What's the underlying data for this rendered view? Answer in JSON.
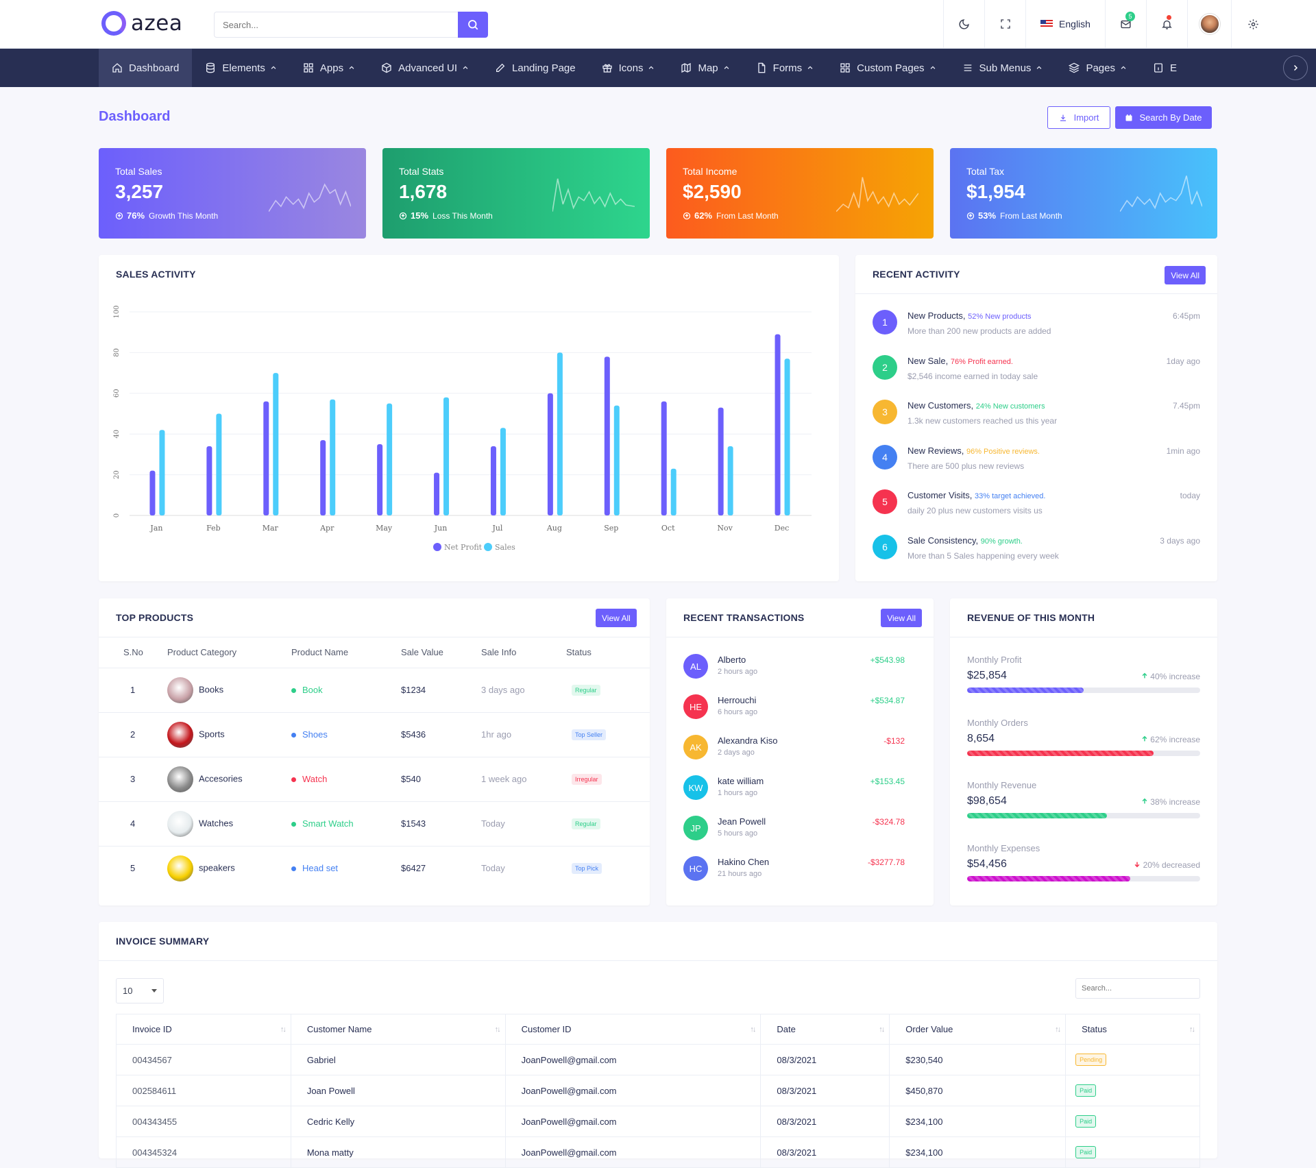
{
  "brand": {
    "name": "azea"
  },
  "search": {
    "placeholder": "Search..."
  },
  "topbar": {
    "language": "English",
    "mail_count": "5"
  },
  "nav": [
    {
      "label": "Dashboard",
      "icon": "home-icon",
      "chevron": false
    },
    {
      "label": "Elements",
      "icon": "database-icon",
      "chevron": true
    },
    {
      "label": "Apps",
      "icon": "grid-icon",
      "chevron": true
    },
    {
      "label": "Advanced UI",
      "icon": "package-icon",
      "chevron": true
    },
    {
      "label": "Landing Page",
      "icon": "edit-icon",
      "chevron": false
    },
    {
      "label": "Icons",
      "icon": "gift-icon",
      "chevron": true
    },
    {
      "label": "Map",
      "icon": "map-icon",
      "chevron": true
    },
    {
      "label": "Forms",
      "icon": "file-icon",
      "chevron": true
    },
    {
      "label": "Custom Pages",
      "icon": "grid-icon",
      "chevron": true
    },
    {
      "label": "Sub Menus",
      "icon": "menu-icon",
      "chevron": true
    },
    {
      "label": "Pages",
      "icon": "layers-icon",
      "chevron": true
    },
    {
      "label": "E",
      "icon": "info-icon",
      "chevron": false
    }
  ],
  "header": {
    "title": "Dashboard",
    "import_label": "Import",
    "search_by_date_label": "Search By Date"
  },
  "stats": [
    {
      "title": "Total Sales",
      "value": "3,257",
      "percent": "76%",
      "note": "Growth This Month",
      "gradient": [
        "#6c5ffc",
        "#9a87e0"
      ]
    },
    {
      "title": "Total Stats",
      "value": "1,678",
      "percent": "15%",
      "note": "Loss This Month",
      "gradient": [
        "#1e9e6e",
        "#2ed58d"
      ]
    },
    {
      "title": "Total Income",
      "value": "$2,590",
      "percent": "62%",
      "note": "From Last Month",
      "gradient": [
        "#fc5b1e",
        "#f6a404"
      ]
    },
    {
      "title": "Total Tax",
      "value": "$1,954",
      "percent": "53%",
      "note": "From Last Month",
      "gradient": [
        "#5b73f1",
        "#48c2fb"
      ]
    }
  ],
  "sales_activity": {
    "title": "SALES ACTIVITY",
    "chart_data": {
      "type": "bar",
      "categories": [
        "Jan",
        "Feb",
        "Mar",
        "Apr",
        "May",
        "Jun",
        "Jul",
        "Aug",
        "Sep",
        "Oct",
        "Nov",
        "Dec"
      ],
      "series": [
        {
          "name": "Net Profit",
          "color": "#6c5ffc",
          "values": [
            22,
            34,
            56,
            37,
            35,
            21,
            34,
            60,
            78,
            56,
            53,
            89
          ]
        },
        {
          "name": "Sales",
          "color": "#4ccdfb",
          "values": [
            42,
            50,
            70,
            57,
            55,
            58,
            43,
            80,
            54,
            23,
            34,
            77
          ]
        }
      ],
      "ylim": [
        0,
        100
      ],
      "yticks": [
        "0",
        "20",
        "40",
        "60",
        "80",
        "100"
      ],
      "grid": true,
      "legend": "bottom"
    }
  },
  "recent_activity": {
    "title": "RECENT ACTIVITY",
    "view_all": "View All",
    "items": [
      {
        "num": "1",
        "title": "New Products,",
        "highlight": "52% New products",
        "hl_color": "#6c5ffc",
        "desc": "More than 200 new products are added",
        "time": "6:45pm",
        "color": "#6c5ffc"
      },
      {
        "num": "2",
        "title": "New Sale,",
        "highlight": "76% Profit earned.",
        "hl_color": "#f5334f",
        "desc": "$2,546 income earned in today sale",
        "time": "1day ago",
        "color": "#2dce89"
      },
      {
        "num": "3",
        "title": "New Customers,",
        "highlight": "24% New customers",
        "hl_color": "#2dce89",
        "desc": "1.3k new customers reached us this year",
        "time": "7.45pm",
        "color": "#f7b731"
      },
      {
        "num": "4",
        "title": "New Reviews,",
        "highlight": "96% Positive reviews.",
        "hl_color": "#f7b731",
        "desc": "There are 500 plus new reviews",
        "time": "1min ago",
        "color": "#4480f2"
      },
      {
        "num": "5",
        "title": "Customer Visits,",
        "highlight": "33% target achieved.",
        "hl_color": "#4480f2",
        "desc": "daily 20 plus new customers visits us",
        "time": "today",
        "color": "#f5334f"
      },
      {
        "num": "6",
        "title": "Sale Consistency,",
        "highlight": "90% growth.",
        "hl_color": "#2dce89",
        "desc": "More than 5 Sales happening every week",
        "time": "3 days ago",
        "color": "#17c1e8"
      }
    ]
  },
  "top_products": {
    "title": "TOP PRODUCTS",
    "view_all": "View All",
    "columns": [
      "S.No",
      "Product Category",
      "Product Name",
      "Sale Value",
      "Sale Info",
      "Status"
    ],
    "rows": [
      {
        "no": "1",
        "category": "Books",
        "name": "Book",
        "name_color": "#2dce89",
        "value": "$1234",
        "info": "3 days ago",
        "status": "Regular",
        "status_color": "#2dce89",
        "status_bg": "#e2f8ee",
        "img": "#c9a2a8"
      },
      {
        "no": "2",
        "category": "Sports",
        "name": "Shoes",
        "name_color": "#4480f2",
        "value": "$5436",
        "info": "1hr ago",
        "status": "Top Seller",
        "status_color": "#4480f2",
        "status_bg": "#e3ecfd",
        "img": "#c4161c"
      },
      {
        "no": "3",
        "category": "Accesories",
        "name": "Watch",
        "name_color": "#f5334f",
        "value": "$540",
        "info": "1 week ago",
        "status": "Irregular",
        "status_color": "#f5334f",
        "status_bg": "#fde6ea",
        "img": "#8a8a8a"
      },
      {
        "no": "4",
        "category": "Watches",
        "name": "Smart Watch",
        "name_color": "#2dce89",
        "value": "$1543",
        "info": "Today",
        "status": "Regular",
        "status_color": "#2dce89",
        "status_bg": "#e2f8ee",
        "img": "#e6ecee"
      },
      {
        "no": "5",
        "category": "speakers",
        "name": "Head set",
        "name_color": "#4480f2",
        "value": "$6427",
        "info": "Today",
        "status": "Top Pick",
        "status_color": "#4480f2",
        "status_bg": "#e3ecfd",
        "img": "#f8d000"
      }
    ]
  },
  "recent_transactions": {
    "title": "RECENT TRANSACTIONS",
    "view_all": "View All",
    "items": [
      {
        "initials": "AL",
        "name": "Alberto",
        "time": "2 hours ago",
        "amount": "+$543.98",
        "color": "#6c5ffc",
        "amt_color": "#2dce89"
      },
      {
        "initials": "HE",
        "name": "Herrouchi",
        "time": "6 hours ago",
        "amount": "+$534.87",
        "color": "#f5334f",
        "amt_color": "#2dce89"
      },
      {
        "initials": "AK",
        "name": "Alexandra Kiso",
        "time": "2 days ago",
        "amount": "-$132",
        "color": "#f7b731",
        "amt_color": "#f5334f"
      },
      {
        "initials": "KW",
        "name": "kate william",
        "time": "1 hours ago",
        "amount": "+$153.45",
        "color": "#17c1e8",
        "amt_color": "#2dce89"
      },
      {
        "initials": "JP",
        "name": "Jean Powell",
        "time": "5 hours ago",
        "amount": "-$324.78",
        "color": "#2dce89",
        "amt_color": "#f5334f"
      },
      {
        "initials": "HC",
        "name": "Hakino Chen",
        "time": "21 hours ago",
        "amount": "-$3277.78",
        "color": "#5b73f1",
        "amt_color": "#f5334f"
      }
    ]
  },
  "revenue": {
    "title": "REVENUE OF THIS MONTH",
    "items": [
      {
        "label": "Monthly Profit",
        "value": "$25,854",
        "change": "40% increase",
        "dir": "up",
        "percent": 50,
        "color": "#6c5ffc"
      },
      {
        "label": "Monthly Orders",
        "value": "8,654",
        "change": "62% increase",
        "dir": "up",
        "percent": 80,
        "color": "#f5334f"
      },
      {
        "label": "Monthly Revenue",
        "value": "$98,654",
        "change": "38% increase",
        "dir": "up",
        "percent": 60,
        "color": "#2dce89"
      },
      {
        "label": "Monthly Expenses",
        "value": "$54,456",
        "change": "20% decreased",
        "dir": "down",
        "percent": 70,
        "color": "#cd11cd"
      }
    ]
  },
  "invoice": {
    "title": "INVOICE SUMMARY",
    "page_size": "10",
    "search_placeholder": "Search...",
    "columns": [
      "Invoice ID",
      "Customer Name",
      "Customer ID",
      "Date",
      "Order Value",
      "Status"
    ],
    "rows": [
      {
        "id": "00434567",
        "name": "Gabriel",
        "cid": "JoanPowell@gmail.com",
        "date": "08/3/2021",
        "value": "$230,540",
        "status": "Pending",
        "s_color": "#f7b731"
      },
      {
        "id": "002584611",
        "name": "Joan Powell",
        "cid": "JoanPowell@gmail.com",
        "date": "08/3/2021",
        "value": "$450,870",
        "status": "Paid",
        "s_color": "#2dce89"
      },
      {
        "id": "004343455",
        "name": "Cedric Kelly",
        "cid": "JoanPowell@gmail.com",
        "date": "08/3/2021",
        "value": "$234,100",
        "status": "Paid",
        "s_color": "#2dce89"
      },
      {
        "id": "004345324",
        "name": "Mona matty",
        "cid": "JoanPowell@gmail.com",
        "date": "08/3/2021",
        "value": "$234,100",
        "status": "Paid",
        "s_color": "#2dce89"
      }
    ]
  }
}
